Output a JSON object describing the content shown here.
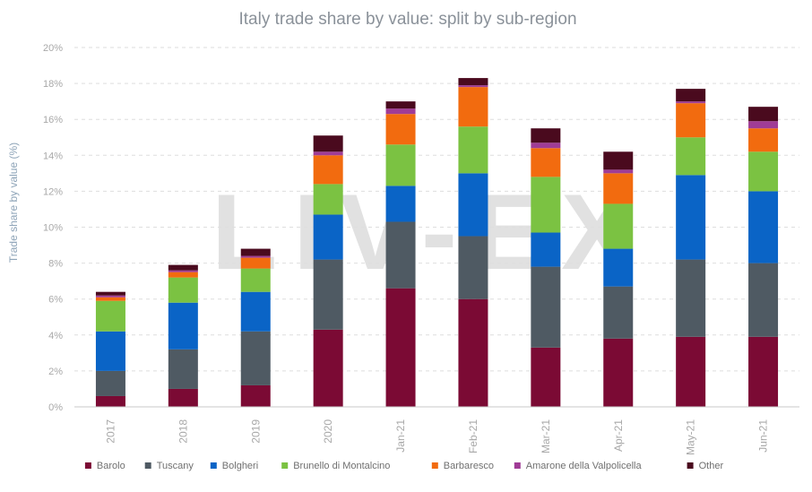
{
  "chart_data": {
    "type": "bar",
    "stacked": true,
    "title": "Italy trade share by value: split by sub-region",
    "xlabel": "",
    "ylabel": "Trade share by value (%)",
    "ylim": [
      0,
      20
    ],
    "yticks": [
      "0%",
      "2%",
      "4%",
      "6%",
      "8%",
      "10%",
      "12%",
      "14%",
      "16%",
      "18%",
      "20%"
    ],
    "grid": true,
    "legend_position": "bottom",
    "watermark": "LIV-EX",
    "categories": [
      "2017",
      "2018",
      "2019",
      "2020",
      "Jan-21",
      "Feb-21",
      "Mar-21",
      "Apr-21",
      "May-21",
      "Jun-21"
    ],
    "series": [
      {
        "name": "Barolo",
        "color": "#7b0a34",
        "values": [
          0.6,
          1.0,
          1.2,
          4.3,
          6.6,
          6.0,
          3.3,
          3.8,
          3.9,
          3.9
        ]
      },
      {
        "name": "Tuscany",
        "color": "#4f5a63",
        "values": [
          1.4,
          2.2,
          3.0,
          3.9,
          3.7,
          3.5,
          4.5,
          2.9,
          4.3,
          4.1
        ]
      },
      {
        "name": "Bolgheri",
        "color": "#0a64c6",
        "values": [
          2.2,
          2.6,
          2.2,
          2.5,
          2.0,
          3.5,
          1.9,
          2.1,
          4.7,
          4.0
        ]
      },
      {
        "name": "Brunello di Montalcino",
        "color": "#7bc242",
        "values": [
          1.7,
          1.4,
          1.3,
          1.7,
          2.3,
          2.6,
          3.1,
          2.5,
          2.1,
          2.2
        ]
      },
      {
        "name": "Barbaresco",
        "color": "#f26b0f",
        "values": [
          0.2,
          0.3,
          0.6,
          1.6,
          1.7,
          2.2,
          1.6,
          1.7,
          1.9,
          1.3
        ]
      },
      {
        "name": "Amarone della Valpolicella",
        "color": "#a03c96",
        "values": [
          0.1,
          0.1,
          0.1,
          0.2,
          0.3,
          0.1,
          0.3,
          0.2,
          0.1,
          0.4
        ]
      },
      {
        "name": "Other",
        "color": "#4a0a1e",
        "values": [
          0.2,
          0.3,
          0.4,
          0.9,
          0.4,
          0.4,
          0.8,
          1.0,
          0.7,
          0.8
        ]
      }
    ]
  }
}
